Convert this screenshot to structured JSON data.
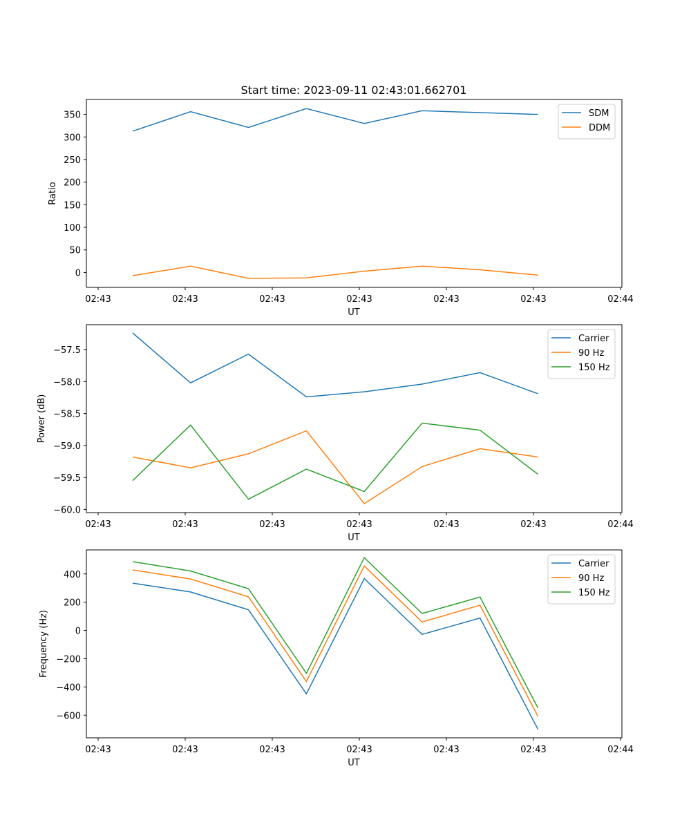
{
  "chart_data": [
    {
      "type": "line",
      "title": "Start time: 2023-09-11 02:43:01.662701",
      "xlabel": "UT",
      "ylabel": "Ratio",
      "x_tick_labels": [
        "02:43",
        "02:43",
        "02:43",
        "02:43",
        "02:43",
        "02:43",
        "02:44"
      ],
      "y_ticks": [
        0,
        50,
        100,
        150,
        200,
        250,
        300,
        350
      ],
      "ylim": [
        -33,
        383
      ],
      "x": [
        1,
        2,
        3,
        4,
        5,
        6,
        7,
        8
      ],
      "xlim": [
        0.2,
        9.45
      ],
      "series": [
        {
          "name": "SDM",
          "color": "#1f77b4",
          "values": [
            313,
            356,
            321,
            363,
            330,
            358,
            354,
            350
          ]
        },
        {
          "name": "DDM",
          "color": "#ff7f0e",
          "values": [
            -7,
            14,
            -13,
            -12,
            3,
            14,
            6,
            -6
          ]
        }
      ]
    },
    {
      "type": "line",
      "title": "",
      "xlabel": "UT",
      "ylabel": "Power (dB)",
      "x_tick_labels": [
        "02:43",
        "02:43",
        "02:43",
        "02:43",
        "02:43",
        "02:43",
        "02:44"
      ],
      "y_ticks": [
        -60.0,
        -59.5,
        -59.0,
        -58.5,
        -58.0,
        -57.5
      ],
      "y_tick_labels": [
        "−60.0",
        "−59.5",
        "−59.0",
        "−58.5",
        "−58.0",
        "−57.5"
      ],
      "ylim": [
        -60.05,
        -57.11
      ],
      "x": [
        1,
        2,
        3,
        4,
        5,
        6,
        7,
        8
      ],
      "xlim": [
        0.2,
        9.45
      ],
      "series": [
        {
          "name": "Carrier",
          "color": "#1f77b4",
          "values": [
            -57.24,
            -58.02,
            -57.57,
            -58.24,
            -58.16,
            -58.04,
            -57.86,
            -58.19
          ]
        },
        {
          "name": "90 Hz",
          "color": "#ff7f0e",
          "values": [
            -59.18,
            -59.35,
            -59.13,
            -58.77,
            -59.91,
            -59.33,
            -59.05,
            -59.18
          ]
        },
        {
          "name": "150 Hz",
          "color": "#2ca02c",
          "values": [
            -59.55,
            -58.68,
            -59.84,
            -59.37,
            -59.72,
            -58.65,
            -58.76,
            -59.45
          ]
        }
      ]
    },
    {
      "type": "line",
      "title": "",
      "xlabel": "UT",
      "ylabel": "Frequency (Hz)",
      "x_tick_labels": [
        "02:43",
        "02:43",
        "02:43",
        "02:43",
        "02:43",
        "02:43",
        "02:44"
      ],
      "y_ticks": [
        -600,
        -400,
        -200,
        0,
        200,
        400
      ],
      "y_tick_labels": [
        "−600",
        "−400",
        "−200",
        "0",
        "200",
        "400"
      ],
      "ylim": [
        -760,
        570
      ],
      "x": [
        1,
        2,
        3,
        4,
        5,
        6,
        7,
        8
      ],
      "xlim": [
        0.2,
        9.45
      ],
      "series": [
        {
          "name": "Carrier",
          "color": "#1f77b4",
          "values": [
            335,
            272,
            146,
            -449,
            367,
            -28,
            88,
            -700
          ]
        },
        {
          "name": "90 Hz",
          "color": "#ff7f0e",
          "values": [
            428,
            364,
            238,
            -361,
            456,
            60,
            178,
            -608
          ]
        },
        {
          "name": "150 Hz",
          "color": "#2ca02c",
          "values": [
            487,
            421,
            295,
            -304,
            515,
            120,
            236,
            -549
          ]
        }
      ]
    }
  ]
}
